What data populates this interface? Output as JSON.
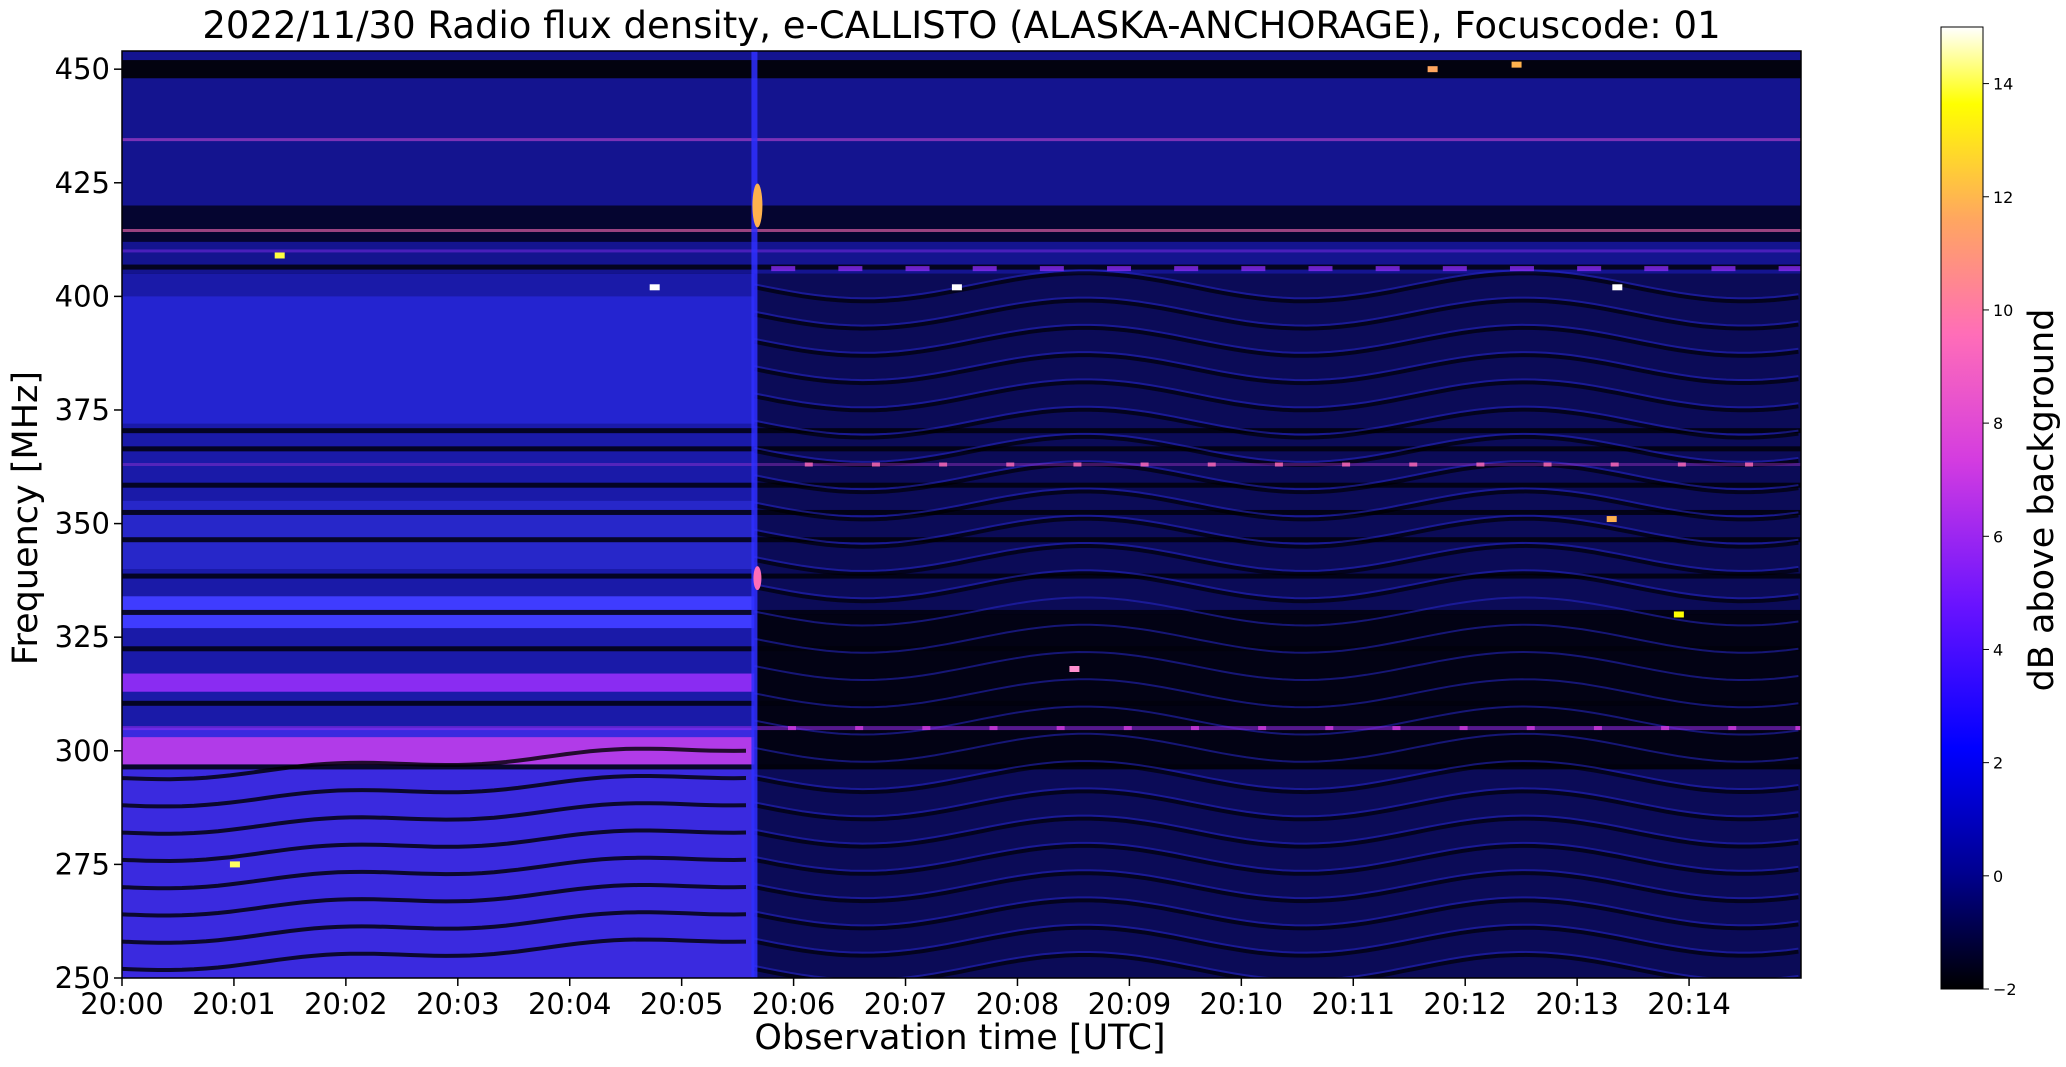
{
  "chart_data": {
    "type": "heatmap",
    "title": "2022/11/30  Radio flux density, e-CALLISTO (ALASKA-ANCHORAGE), Focuscode: 01",
    "xlabel": "Observation time [UTC]",
    "ylabel": "Frequency [MHz]",
    "xlim": [
      "20:00",
      "20:15"
    ],
    "ylim": [
      250,
      454
    ],
    "x_ticks": [
      "20:00",
      "20:01",
      "20:02",
      "20:03",
      "20:04",
      "20:05",
      "20:06",
      "20:07",
      "20:08",
      "20:09",
      "20:10",
      "20:11",
      "20:12",
      "20:13",
      "20:14"
    ],
    "y_ticks": [
      250,
      275,
      300,
      325,
      350,
      375,
      400,
      425,
      450
    ],
    "colorbar": {
      "label": "dB above background",
      "range": [
        -2,
        15
      ],
      "ticks": [
        -2,
        0,
        2,
        4,
        6,
        8,
        10,
        12,
        14
      ],
      "colormap": "gnuplot2",
      "colors": [
        "#000000",
        "#0000ff",
        "#8f22ff",
        "#ff6db8",
        "#ffb24d",
        "#ffff00",
        "#ffffff"
      ]
    },
    "features": [
      "Strong broadband enhancement below about 305 MHz before 20:05:40, with diagonal striped patterns",
      "Sharp transition at about 20:05:40 UTC with a narrow bright emission near 415-420 MHz",
      "Persistent narrowband interference lines near 434 MHz and 414 MHz",
      "Wavy interference striping across 250-405 MHz after 20:05:40"
    ]
  }
}
